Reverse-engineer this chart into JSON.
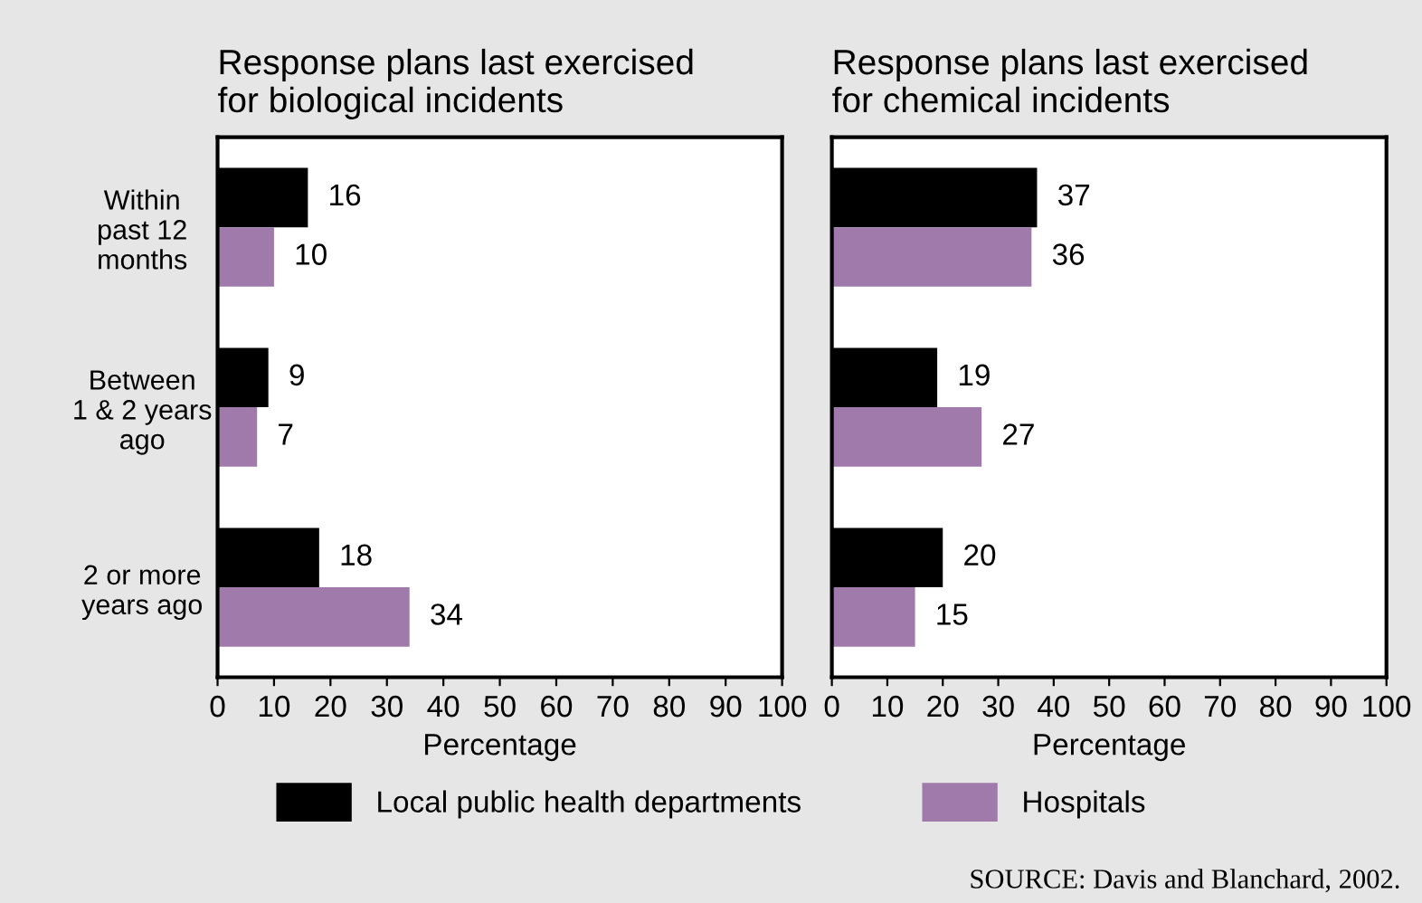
{
  "chart_data": [
    {
      "type": "bar",
      "orientation": "horizontal",
      "title": "Response plans last exercised\nfor biological incidents",
      "xlabel": "Percentage",
      "categories": [
        "Within\npast 12\nmonths",
        "Between\n1 & 2 years\nago",
        "2 or more\nyears ago"
      ],
      "series": [
        {
          "name": "Local public health departments",
          "color": "#000000",
          "values": [
            16,
            9,
            18
          ]
        },
        {
          "name": "Hospitals",
          "color": "#a07aab",
          "values": [
            10,
            7,
            34
          ]
        }
      ],
      "xlim": [
        0,
        100
      ],
      "xticks": [
        0,
        10,
        20,
        30,
        40,
        50,
        60,
        70,
        80,
        90,
        100
      ],
      "data_labels": true,
      "legend": "bottom",
      "grid": false
    },
    {
      "type": "bar",
      "orientation": "horizontal",
      "title": "Response plans last exercised\nfor chemical incidents",
      "xlabel": "Percentage",
      "categories": [
        null,
        null,
        null
      ],
      "series": [
        {
          "color": "#000000",
          "values": [
            37,
            19,
            20
          ]
        },
        {
          "color": "#a07aab",
          "values": [
            36,
            27,
            15
          ]
        }
      ],
      "xlim": [
        0,
        100
      ],
      "xticks": [
        0,
        10,
        20,
        30,
        40,
        50,
        60,
        70,
        80,
        90,
        100
      ],
      "data_labels": true,
      "grid": false,
      "annotations": [
        "SOURCE: Davis and Blanchard, 2002."
      ]
    }
  ]
}
